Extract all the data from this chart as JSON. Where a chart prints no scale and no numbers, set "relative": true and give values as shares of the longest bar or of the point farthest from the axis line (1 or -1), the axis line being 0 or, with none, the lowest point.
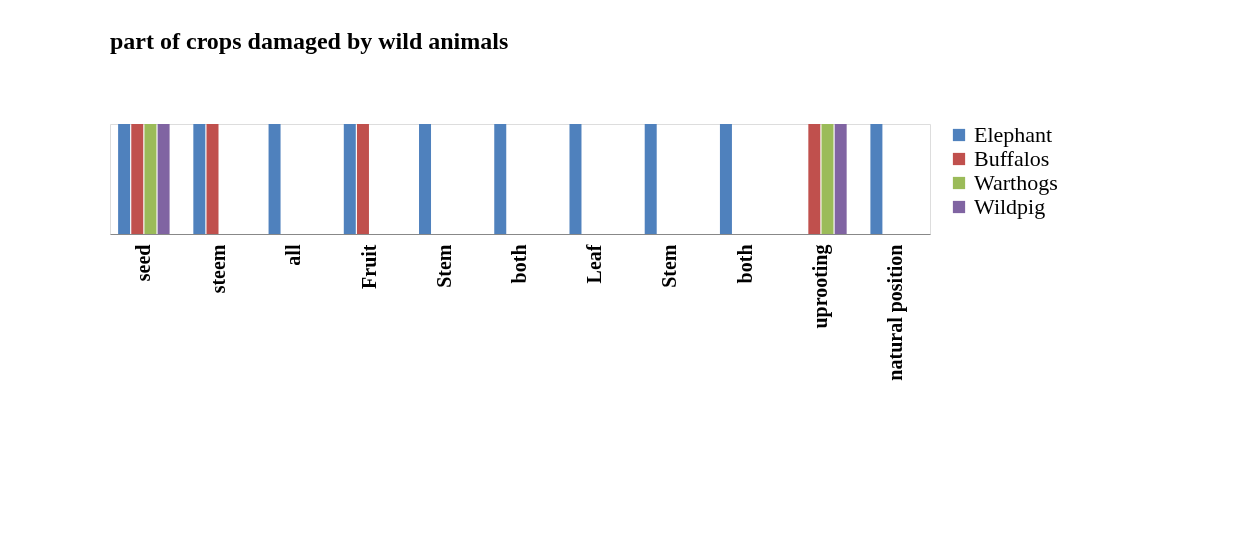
{
  "chart_data": {
    "type": "bar",
    "title": "part of crops damaged by wild animals",
    "relative": true,
    "categories": [
      "seed",
      "steem",
      "all",
      "Fruit",
      "Stem",
      "both",
      "Leaf",
      "Stem",
      "both",
      "uprooting",
      "natural position"
    ],
    "series": [
      {
        "name": "Elephant",
        "color": "#4f81bd",
        "values": [
          1,
          1,
          1,
          1,
          1,
          1,
          1,
          1,
          1,
          0,
          1
        ]
      },
      {
        "name": "Buffalos",
        "color": "#c0504d",
        "values": [
          1,
          1,
          0,
          1,
          0,
          0,
          0,
          0,
          0,
          1,
          0
        ]
      },
      {
        "name": "Warthogs",
        "color": "#9bbb59",
        "values": [
          1,
          0,
          0,
          0,
          0,
          0,
          0,
          0,
          0,
          1,
          0
        ]
      },
      {
        "name": "Wildpig",
        "color": "#8064a2",
        "values": [
          1,
          0,
          0,
          0,
          0,
          0,
          0,
          0,
          0,
          1,
          0
        ]
      }
    ],
    "legend": "right"
  }
}
